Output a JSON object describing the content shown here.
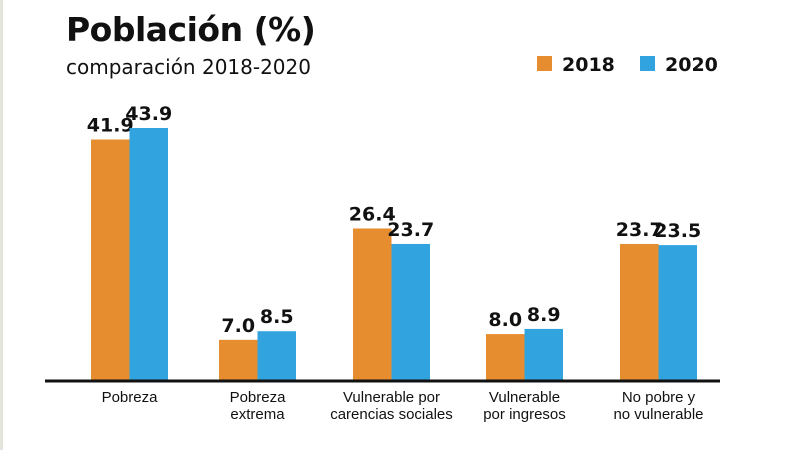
{
  "chart_data": {
    "type": "bar",
    "title": "Población (%)",
    "subtitle": "comparación 2018-2020",
    "xlabel": "",
    "ylabel": "",
    "ylim": [
      0,
      45
    ],
    "grid": false,
    "legend_position": "top-right",
    "categories": [
      [
        "Pobreza"
      ],
      [
        "Pobreza",
        "extrema"
      ],
      [
        "Vulnerable por",
        "carencias sociales"
      ],
      [
        "Vulnerable",
        "por ingresos"
      ],
      [
        "No pobre y",
        "no vulnerable"
      ]
    ],
    "series": [
      {
        "name": "2018",
        "color": "#e68d30",
        "values": [
          41.9,
          7.0,
          26.4,
          8.0,
          23.7
        ],
        "labels": [
          "41.9",
          "7.0",
          "26.4",
          "8.0",
          "23.7"
        ]
      },
      {
        "name": "2020",
        "color": "#31a4e0",
        "values": [
          43.9,
          8.5,
          23.7,
          8.9,
          23.5
        ],
        "labels": [
          "43.9",
          "8.5",
          "23.7",
          "8.9",
          "23.5"
        ]
      }
    ]
  }
}
